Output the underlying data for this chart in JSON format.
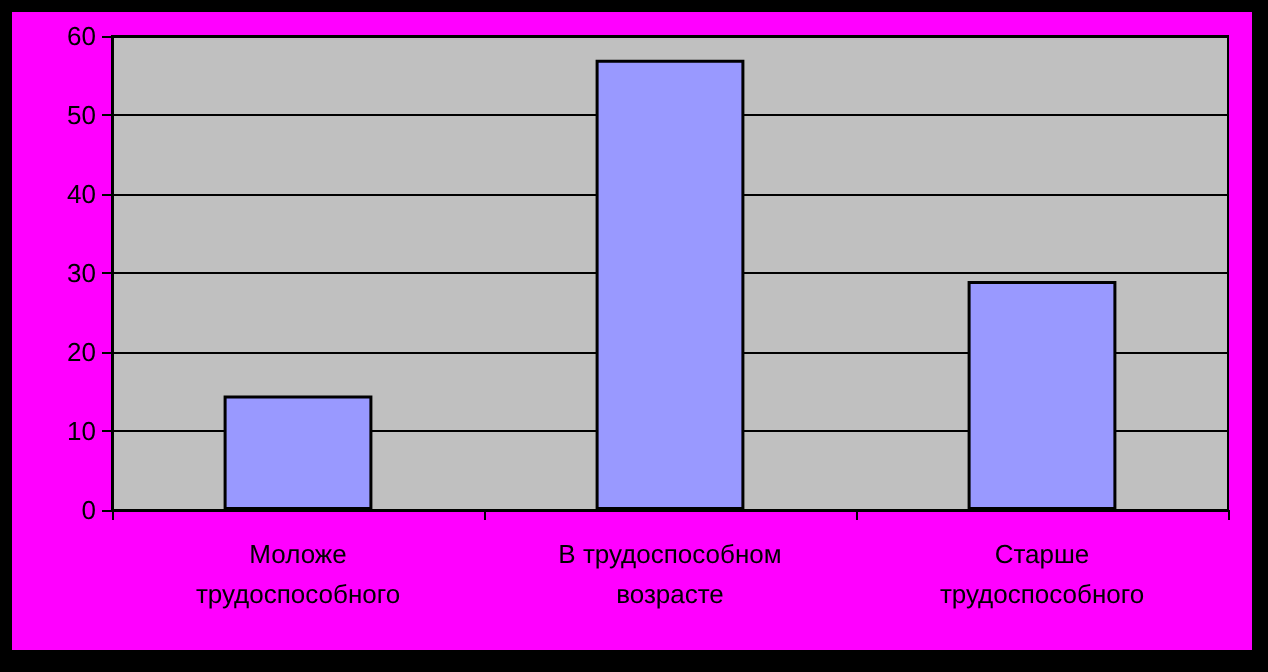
{
  "chart_data": {
    "type": "bar",
    "categories": [
      "Моложе\nтрудоспособного",
      "В трудоспособном\nвозрасте",
      "Старше\nтрудоспособного"
    ],
    "values": [
      14.5,
      57,
      29
    ],
    "color": "#9999ff",
    "ylim": [
      0,
      60
    ],
    "yticks": [
      0,
      10,
      20,
      30,
      40,
      50,
      60
    ],
    "grid": "y"
  }
}
